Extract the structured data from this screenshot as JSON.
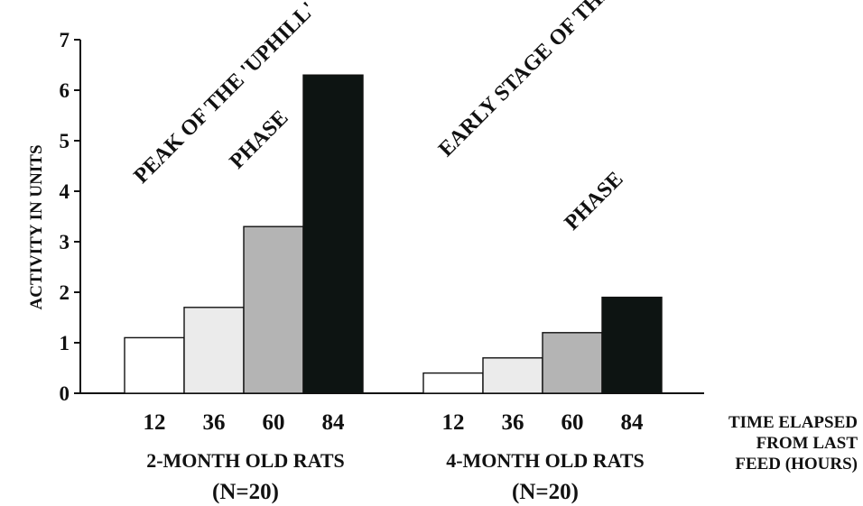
{
  "chart_data": {
    "type": "bar",
    "ylabel": "ACTIVITY IN UNITS",
    "ylim": [
      0,
      7
    ],
    "yticks": [
      0,
      1,
      2,
      3,
      4,
      5,
      6,
      7
    ],
    "xlabel_lines": [
      "TIME ELAPSED",
      "FROM LAST",
      "FEED (HOURS)"
    ],
    "categories": [
      "12",
      "36",
      "60",
      "84"
    ],
    "bar_colors": [
      "#ffffff",
      "#ebebeb",
      "#b4b4b4",
      "#0d1412"
    ],
    "grid": false,
    "groups": [
      {
        "name": "2-MONTH OLD RATS",
        "subtitle": "(N=20)",
        "values": [
          1.1,
          1.7,
          3.3,
          6.3
        ],
        "annotation": [
          "PEAK OF THE 'UPHILL'",
          "PHASE"
        ]
      },
      {
        "name": "4-MONTH OLD RATS",
        "subtitle": "(N=20)",
        "values": [
          0.4,
          0.7,
          1.2,
          1.9
        ],
        "annotation": [
          "EARLY STAGE OF THE 'DOWNHILL'",
          "PHASE"
        ]
      }
    ]
  }
}
